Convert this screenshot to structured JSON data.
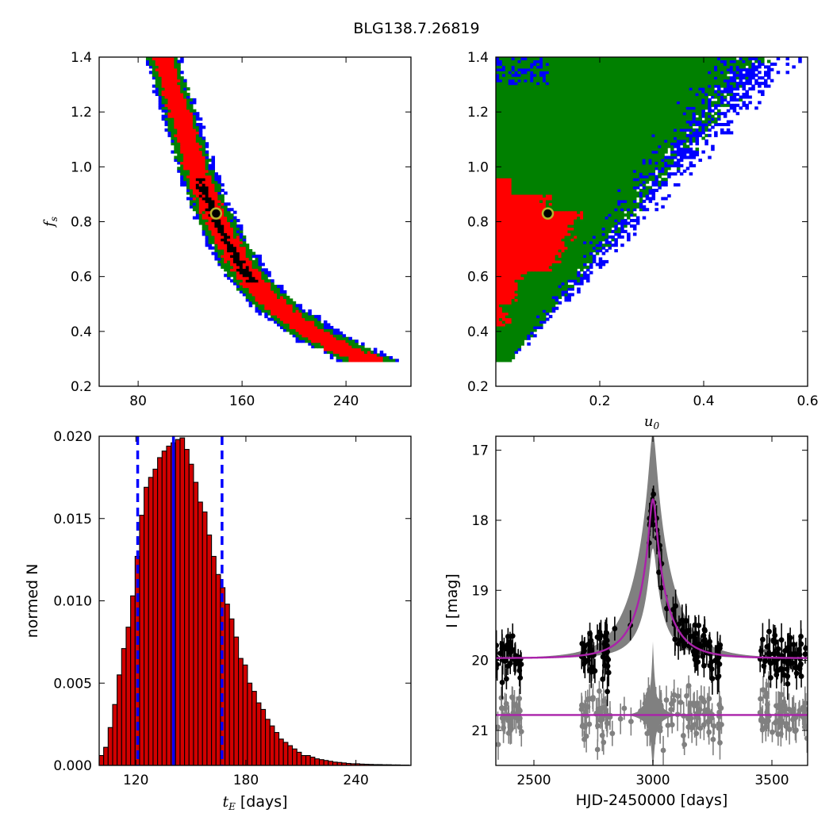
{
  "title": "BLG138.7.26819",
  "colors": {
    "black": "#000000",
    "red": "#ff0000",
    "green": "#008000",
    "blue": "#0000ff",
    "yellow": "#b5b52c",
    "bar_fill": "#d10000",
    "vline_blue": "#0000ff",
    "model": "#aa22aa",
    "band": "#808080",
    "residual": "#808080"
  },
  "chart_data": [
    {
      "id": "tE_fs",
      "type": "heatmap",
      "xlabel": "",
      "ylabel": "f_s",
      "ylabel_text": {
        "base": "f",
        "sub": "s"
      },
      "xlim": [
        50,
        290
      ],
      "ylim": [
        0.2,
        1.4
      ],
      "xticks": [
        80,
        160,
        240
      ],
      "yticks": [
        0.2,
        0.4,
        0.6,
        0.8,
        1.0,
        1.2,
        1.4
      ],
      "ytick_labels": [
        "0.2",
        "0.4",
        "0.6",
        "0.8",
        "1.0",
        "1.2",
        "1.4"
      ],
      "levels": [
        "black",
        "red",
        "green",
        "blue"
      ],
      "ridge": [
        [
          99,
          1.4
        ],
        [
          105,
          1.3
        ],
        [
          112,
          1.2
        ],
        [
          118,
          1.1
        ],
        [
          124,
          1.0
        ],
        [
          130,
          0.92
        ],
        [
          136,
          0.85
        ],
        [
          144,
          0.77
        ],
        [
          152,
          0.7
        ],
        [
          162,
          0.62
        ],
        [
          174,
          0.55
        ],
        [
          190,
          0.48
        ],
        [
          210,
          0.41
        ],
        [
          232,
          0.35
        ],
        [
          260,
          0.29
        ]
      ],
      "best_fit": {
        "x": 140,
        "y": 0.83
      }
    },
    {
      "id": "u0_fs",
      "type": "heatmap",
      "xlabel": "u_0",
      "xlabel_text": {
        "base": "u",
        "sub": "0"
      },
      "ylabel": "",
      "xlim": [
        0.0,
        0.6
      ],
      "ylim": [
        0.2,
        1.4
      ],
      "xticks": [
        0.2,
        0.4,
        0.6
      ],
      "xtick_labels": [
        "0.2",
        "0.4",
        "0.6"
      ],
      "yticks": [
        0.2,
        0.4,
        0.6,
        0.8,
        1.0,
        1.2,
        1.4
      ],
      "ytick_labels": [
        "0.2",
        "0.4",
        "0.6",
        "0.8",
        "1.0",
        "1.2",
        "1.4"
      ],
      "levels": [
        "red",
        "green",
        "blue"
      ],
      "best_fit": {
        "x": 0.1,
        "y": 0.83
      }
    },
    {
      "id": "tE_hist",
      "type": "bar",
      "xlabel": "t_E [days]",
      "xlabel_text": {
        "base": "t",
        "sub": "E",
        "rest": "[days]"
      },
      "ylabel": "normed N",
      "xlim": [
        100,
        270
      ],
      "ylim": [
        0.0,
        0.02
      ],
      "xticks": [
        120,
        180,
        240
      ],
      "yticks": [
        0.0,
        0.005,
        0.01,
        0.015,
        0.02
      ],
      "ytick_labels": [
        "0.000",
        "0.005",
        "0.010",
        "0.015",
        "0.020"
      ],
      "bin_start": 100,
      "bin_width": 2.45,
      "values": [
        0.0006,
        0.0011,
        0.0023,
        0.0037,
        0.0055,
        0.0071,
        0.0084,
        0.0103,
        0.0127,
        0.0152,
        0.0169,
        0.0175,
        0.018,
        0.0187,
        0.0191,
        0.0194,
        0.0196,
        0.0198,
        0.0199,
        0.0192,
        0.0183,
        0.0172,
        0.016,
        0.0154,
        0.014,
        0.0127,
        0.0116,
        0.0108,
        0.0098,
        0.0089,
        0.0078,
        0.0065,
        0.0061,
        0.005,
        0.0045,
        0.0038,
        0.0034,
        0.0028,
        0.0024,
        0.002,
        0.0016,
        0.0014,
        0.0012,
        0.001,
        0.0008,
        0.0006,
        0.0006,
        0.0005,
        0.0004,
        0.00035,
        0.0003,
        0.00025,
        0.0002,
        0.00018,
        0.00015,
        0.00012,
        0.0001,
        0.0001,
        8e-05,
        7e-05,
        6e-05,
        5e-05,
        5e-05,
        4e-05,
        4e-05,
        3e-05,
        3e-05,
        2e-05,
        2e-05
      ],
      "median": 140.5,
      "lower": 121,
      "upper": 167
    },
    {
      "id": "lightcurve",
      "type": "scatter",
      "xlabel": "HJD-2450000 [days]",
      "ylabel": "I [mag]",
      "xlim": [
        2340,
        3650
      ],
      "ylim": [
        21.5,
        16.8
      ],
      "xticks": [
        2500,
        3000,
        3500
      ],
      "yticks": [
        17,
        18,
        19,
        20,
        21
      ],
      "model": {
        "t0": 3000,
        "tE": 140,
        "u0": 0.1,
        "baseline": 19.97,
        "peak": 17.7
      },
      "residual_baseline": 20.78,
      "season_ranges": [
        [
          2340,
          2450
        ],
        [
          2700,
          3290
        ],
        [
          3450,
          3650
        ]
      ]
    }
  ]
}
